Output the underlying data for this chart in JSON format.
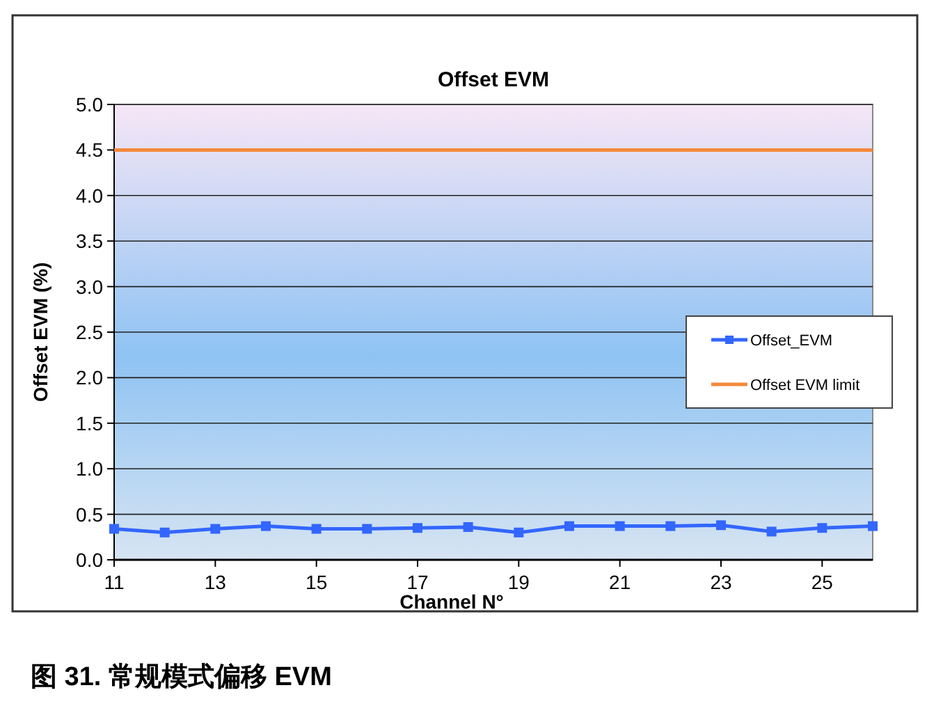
{
  "chart_data": {
    "type": "line",
    "title": "Offset EVM",
    "xlabel": "Channel N°",
    "ylabel": "Offset EVM (%)",
    "x": [
      11,
      12,
      13,
      14,
      15,
      16,
      17,
      18,
      19,
      20,
      21,
      22,
      23,
      24,
      25,
      26
    ],
    "series": [
      {
        "name": "Offset_EVM",
        "color": "#3366ff",
        "marker": "square",
        "values": [
          0.34,
          0.3,
          0.34,
          0.37,
          0.34,
          0.34,
          0.35,
          0.36,
          0.3,
          0.37,
          0.37,
          0.37,
          0.38,
          0.31,
          0.35,
          0.37
        ]
      },
      {
        "name": "Offset EVM limit",
        "color": "#f5883a",
        "marker": "none",
        "values": [
          4.5,
          4.5,
          4.5,
          4.5,
          4.5,
          4.5,
          4.5,
          4.5,
          4.5,
          4.5,
          4.5,
          4.5,
          4.5,
          4.5,
          4.5,
          4.5
        ]
      }
    ],
    "xlim": [
      11,
      26
    ],
    "xticks": [
      11,
      13,
      15,
      17,
      19,
      21,
      23,
      25
    ],
    "ylim": [
      0,
      5
    ],
    "yticks": [
      {
        "value": 0,
        "label": "0.0"
      },
      {
        "value": 0.5,
        "label": "0.5"
      },
      {
        "value": 1,
        "label": "1.0"
      },
      {
        "value": 1.5,
        "label": "1.5"
      },
      {
        "value": 2,
        "label": "2.0"
      },
      {
        "value": 2.5,
        "label": "2.5"
      },
      {
        "value": 3,
        "label": "3.0"
      },
      {
        "value": 3.5,
        "label": "3.5"
      },
      {
        "value": 4,
        "label": "4.0"
      },
      {
        "value": 4.5,
        "label": "4.5"
      },
      {
        "value": 5,
        "label": "5.0"
      }
    ],
    "grid": "y",
    "legend": "right",
    "line_style": "solid",
    "annotations": [
      "图 31. 常规模式偏移 EVM"
    ]
  }
}
